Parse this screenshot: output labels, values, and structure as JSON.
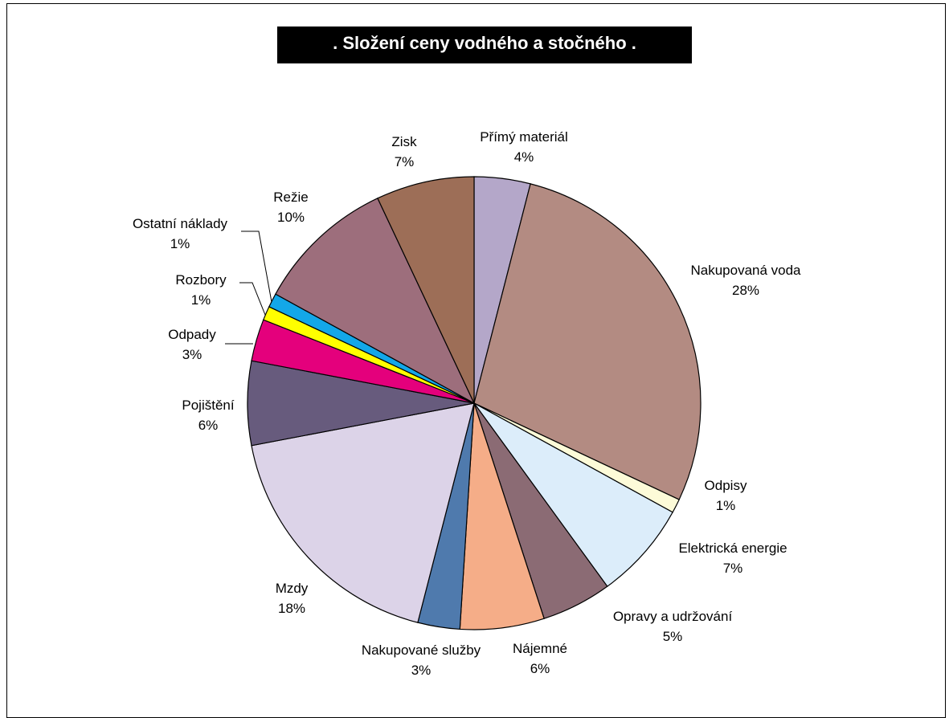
{
  "chart_data": {
    "type": "pie",
    "title": ".   Složení ceny vodného a stočného   .",
    "start_angle_deg": 0,
    "direction": "clockwise",
    "slices": [
      {
        "label": "Přímý materiál",
        "value": 4,
        "value_label": "4%",
        "color": "#b4a7c9"
      },
      {
        "label": "Nakupovaná voda",
        "value": 28,
        "value_label": "28%",
        "color": "#b38b82"
      },
      {
        "label": "Odpisy",
        "value": 1,
        "value_label": "1%",
        "color": "#fdfbd8"
      },
      {
        "label": "Elektrická energie",
        "value": 7,
        "value_label": "7%",
        "color": "#dcedfa"
      },
      {
        "label": "Opravy a udržování",
        "value": 5,
        "value_label": "5%",
        "color": "#8b6b74"
      },
      {
        "label": "Nájemné",
        "value": 6,
        "value_label": "6%",
        "color": "#f5ad88"
      },
      {
        "label": "Nakupované služby",
        "value": 3,
        "value_label": "3%",
        "color": "#4f7aad"
      },
      {
        "label": "Mzdy",
        "value": 18,
        "value_label": "18%",
        "color": "#dcd3e8"
      },
      {
        "label": "Pojištění",
        "value": 6,
        "value_label": "6%",
        "color": "#675b7d"
      },
      {
        "label": "Odpady",
        "value": 3,
        "value_label": "3%",
        "color": "#e4007c"
      },
      {
        "label": "Rozbory",
        "value": 1,
        "value_label": "1%",
        "color": "#ffff00"
      },
      {
        "label": "Ostatní náklady",
        "value": 1,
        "value_label": "1%",
        "color": "#13a7e8"
      },
      {
        "label": "Režie",
        "value": 10,
        "value_label": "10%",
        "color": "#9d6e7c"
      },
      {
        "label": "Zisk",
        "value": 7,
        "value_label": "7%",
        "color": "#9d6e57"
      }
    ]
  }
}
